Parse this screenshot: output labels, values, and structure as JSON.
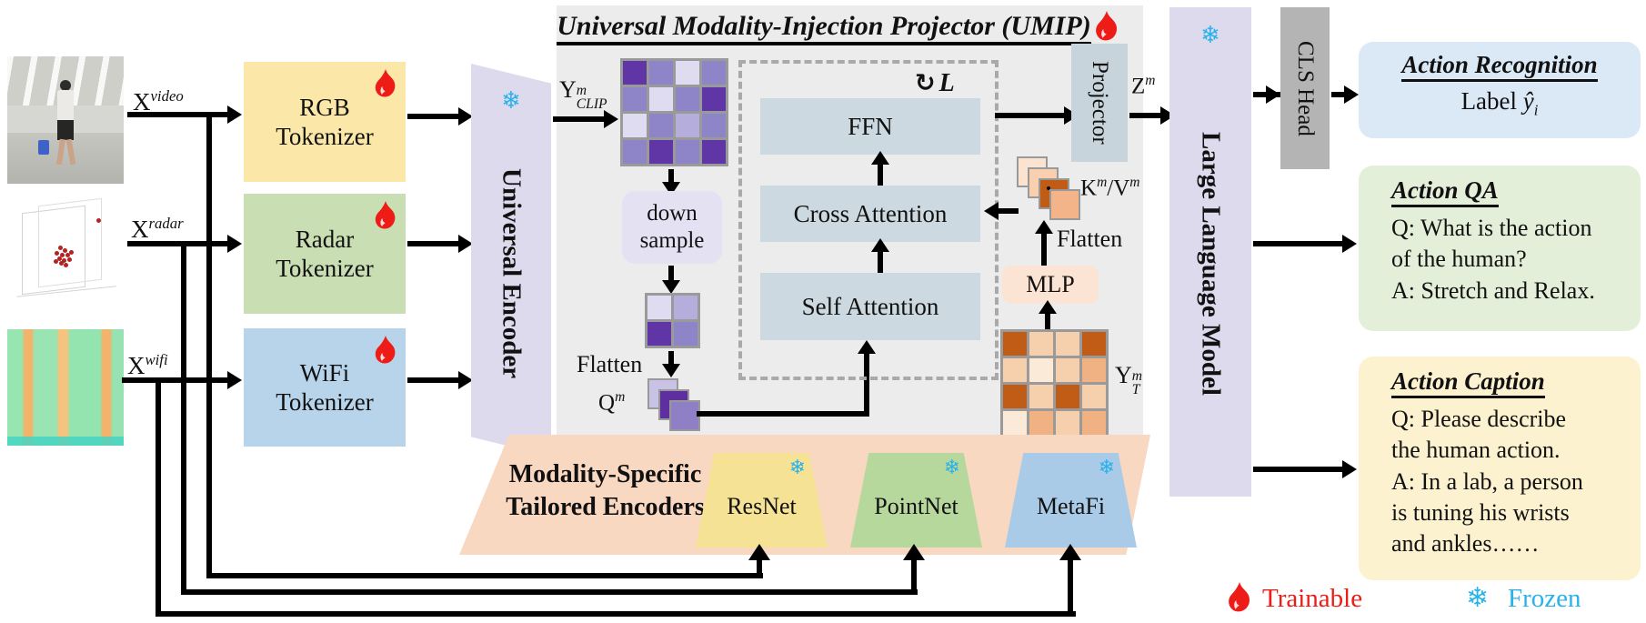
{
  "icons": {
    "snowflake": "❄",
    "loop": "↻"
  },
  "inputs": {
    "video": {
      "base": "X",
      "sup": "video"
    },
    "radar": {
      "base": "X",
      "sup": "radar"
    },
    "wifi": {
      "base": "X",
      "sup": "wifi"
    }
  },
  "tokenizers": {
    "rgb": {
      "line1": "RGB",
      "line2": "Tokenizer"
    },
    "radar": {
      "line1": "Radar",
      "line2": "Tokenizer"
    },
    "wifi": {
      "line1": "WiFi",
      "line2": "Tokenizer"
    }
  },
  "encoder": {
    "label": "Universal Encoder"
  },
  "umip": {
    "title": "Universal Modality-Injection Projector (UMIP)",
    "y_clip": {
      "base": "Y",
      "sup": "m",
      "sub": "CLIP"
    },
    "down_sample_line1": "down",
    "down_sample_line2": "sample",
    "flatten_left": "Flatten",
    "q": {
      "base": "Q",
      "sup": "m"
    },
    "ffn": "FFN",
    "cross_attention": "Cross Attention",
    "self_attention": "Self Attention",
    "loop_label": "L",
    "kv": {
      "k": "K",
      "ksup": "m",
      "sep": "/",
      "v": "V",
      "vsup": "m"
    },
    "flatten_right": "Flatten",
    "mlp": "MLP",
    "y_t": {
      "base": "Y",
      "sup": "m",
      "sub": "T"
    },
    "projector": "Projector",
    "z": {
      "base": "Z",
      "sup": "m"
    }
  },
  "llm": {
    "label": "Large Language Model"
  },
  "cls_head": {
    "label": "CLS Head"
  },
  "outputs": {
    "recognition": {
      "title": "Action Recognition",
      "label_word": "Label",
      "var": "ŷ",
      "var_sub": "i"
    },
    "qa": {
      "title": "Action QA",
      "lines": [
        "Q: What is the action",
        "of the human?",
        "A: Stretch and Relax."
      ]
    },
    "caption": {
      "title": "Action Caption",
      "lines": [
        "Q: Please describe",
        "the human action.",
        "A: In a lab, a person",
        "is tuning his wrists",
        "and ankles……"
      ]
    }
  },
  "bottom": {
    "band_line1": "Modality-Specific",
    "band_line2": "Tailored Encoders",
    "encoders": [
      {
        "name": "ResNet"
      },
      {
        "name": "PointNet"
      },
      {
        "name": "MetaFi"
      }
    ]
  },
  "legend": {
    "trainable": "Trainable",
    "frozen": "Frozen"
  },
  "colors": {
    "trainable_red": "#ed1c16",
    "frozen_blue": "#29b2ea",
    "panel_gray": "#ececec",
    "encoder_lavender": "#dcdaec",
    "attention_blue": "#ccd9e0",
    "rgb_yellow": "#fbe7a7",
    "radar_green": "#c9deb3",
    "wifi_blue": "#b7d4ea",
    "downsample_lavender": "#e4e1f3",
    "mlp_peach": "#fbe4d3",
    "band_peach": "#f8d8c1",
    "resnet_yellow": "#f6e294",
    "pointnet_green": "#b7d89c",
    "metafi_blue": "#a9cbe8",
    "cls_gray": "#b4b4b4",
    "q_tokens": [
      "#c9c2e4",
      "#5e2f9f",
      "#8f80c5"
    ],
    "kv_tokens": [
      "#fbe3d2",
      "#f8d0b0",
      "#c05c15",
      "#f2b488"
    ]
  },
  "matrices": {
    "clip": {
      "cell": 26,
      "palette": {
        "d": "#6036a6",
        "m": "#8e84c8",
        "l2": "#b5addc",
        "l": "#dfdcf1"
      },
      "rows": [
        [
          "d",
          "m",
          "l",
          "m"
        ],
        [
          "m",
          "l",
          "m",
          "d"
        ],
        [
          "l",
          "m",
          "l2",
          "m"
        ],
        [
          "m",
          "d",
          "m",
          "d"
        ]
      ]
    },
    "clip_small": {
      "cell": 26,
      "palette": {
        "d": "#6036a6",
        "m": "#8e84c8",
        "l2": "#b5addc",
        "l": "#dfdcf1"
      },
      "rows": [
        [
          "l",
          "l2"
        ],
        [
          "d",
          "m"
        ]
      ]
    },
    "yt": {
      "cell": 26,
      "palette": {
        "d": "#c05c15",
        "m": "#f0b183",
        "l": "#f6cfad",
        "xl": "#fcead9"
      },
      "rows": [
        [
          "d",
          "l",
          "l",
          "d"
        ],
        [
          "l",
          "xl",
          "l",
          "m"
        ],
        [
          "d",
          "l",
          "d",
          "l"
        ],
        [
          "xl",
          "m",
          "l",
          "m"
        ]
      ]
    }
  }
}
